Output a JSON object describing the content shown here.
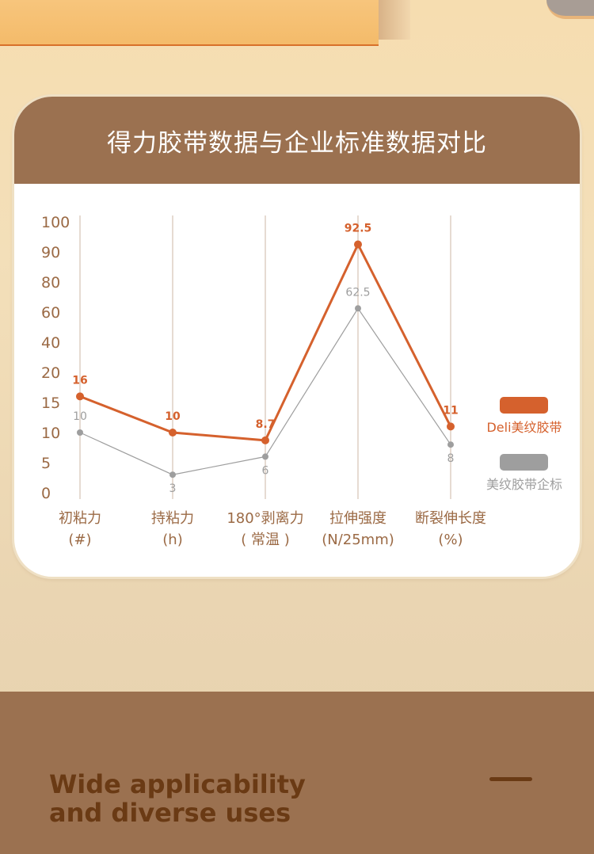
{
  "card": {
    "title": "得力胶带数据与企业标准数据对比"
  },
  "chart_data": {
    "type": "line",
    "title": "得力胶带数据与企业标准数据对比",
    "categories": [
      [
        "初粘力",
        "(#)"
      ],
      [
        "持粘力",
        "(h)"
      ],
      [
        "180°剥离力",
        "( 常温 )"
      ],
      [
        "拉伸强度",
        "(N/25mm)"
      ],
      [
        "断裂伸长度",
        "(%)"
      ]
    ],
    "y_tick_labels": [
      "0",
      "5",
      "10",
      "15",
      "20",
      "40",
      "60",
      "80",
      "90",
      "100"
    ],
    "y_scale": "non-uniform (evenly spaced tick labels)",
    "grid": "vertical lines at categories",
    "legend_placement": "right",
    "series": [
      {
        "name": "Deli美纹胶带",
        "color": "#d5612d",
        "values": [
          16,
          10,
          8.7,
          92.5,
          11
        ],
        "labels": [
          "16",
          "10",
          "8.7",
          "92.5",
          "11"
        ]
      },
      {
        "name": "美纹胶带企标",
        "color": "#9e9e9e",
        "values": [
          10,
          3,
          6,
          62.5,
          8
        ],
        "labels": [
          "10",
          "3",
          "6",
          "62.5",
          "8"
        ]
      }
    ]
  },
  "footer": {
    "line1": "Wide applicability",
    "line2": "and diverse uses"
  }
}
